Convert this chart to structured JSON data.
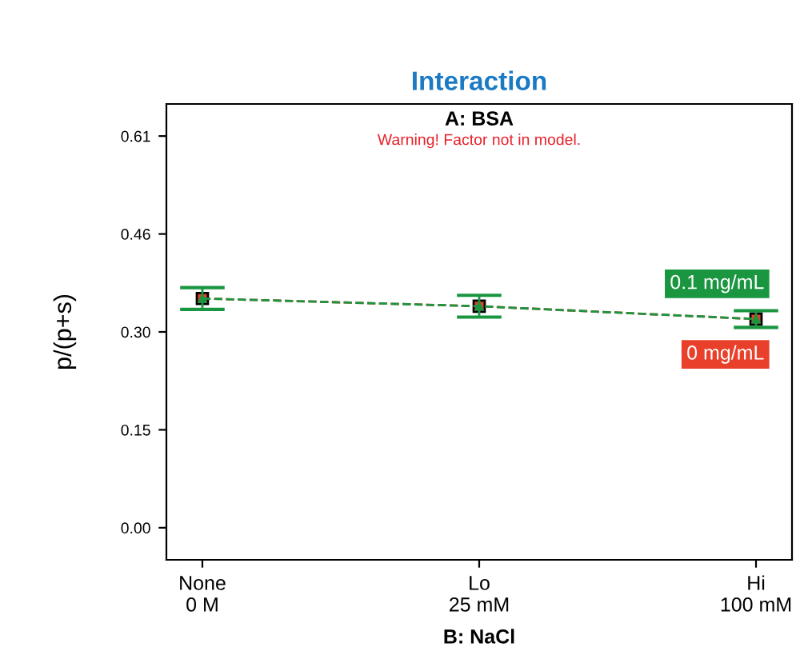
{
  "chart_data": {
    "type": "line",
    "title": "Interaction",
    "subtitle": "A: BSA",
    "xlabel": "B: NaCl",
    "ylabel": "p/(p+s)",
    "annotations": [
      "Warning! Factor not in model."
    ],
    "categories": [
      "None\n0 M",
      "Lo\n25 mM",
      "Hi\n100 mM"
    ],
    "series": [
      {
        "name": "0.1 mg/mL",
        "color": "#1a9641",
        "marker": "triangle",
        "values": [
          0.357,
          0.345,
          0.325
        ],
        "errors": [
          0.017,
          0.017,
          0.013
        ]
      },
      {
        "name": "0 mg/mL",
        "color": "#e8402a",
        "marker": "square",
        "values": [
          0.357,
          0.345,
          0.325
        ]
      }
    ],
    "ylim": [
      -0.05,
      0.66
    ],
    "yticks": [
      {
        "value": 0,
        "label": "0.00"
      },
      {
        "value": 0.1525,
        "label": "0.15"
      },
      {
        "value": 0.305,
        "label": "0.30"
      },
      {
        "value": 0.4575,
        "label": "0.46"
      },
      {
        "value": 0.61,
        "label": "0.61"
      }
    ],
    "line_style": "dashed",
    "grid": false,
    "legend": false
  }
}
